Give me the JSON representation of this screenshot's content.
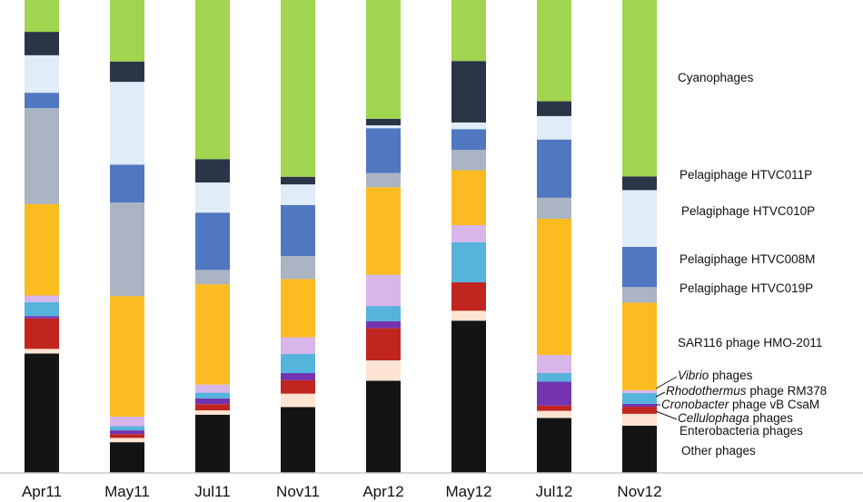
{
  "chart_data": {
    "type": "bar",
    "stacked": true,
    "normalized": true,
    "title": "",
    "xlabel": "",
    "ylabel": "",
    "ylim": [
      0,
      100
    ],
    "grid": false,
    "legend_placement": "right",
    "categories": [
      "Apr11",
      "May11",
      "Jul11",
      "Nov11",
      "Apr12",
      "May12",
      "Jul12",
      "Nov12"
    ],
    "series": [
      {
        "name": "Other phages",
        "color": "#141414",
        "values": [
          25.5,
          6.5,
          12.2,
          13.8,
          19.5,
          32.2,
          11.5,
          10.0
        ]
      },
      {
        "name": "Enterobacteria phages",
        "color": "#fde4d2",
        "values": [
          1.0,
          0.9,
          0.9,
          2.8,
          4.3,
          2.1,
          1.5,
          2.5
        ]
      },
      {
        "name": "Cellulophaga phages",
        "color": "#c0251f",
        "values": [
          6.5,
          0.8,
          1.3,
          2.8,
          6.8,
          6.0,
          1.1,
          1.5
        ]
      },
      {
        "name": "Cronobacter phage vB CsaM",
        "color": "#7434b0",
        "values": [
          0.5,
          0.8,
          1.2,
          1.5,
          1.5,
          0.0,
          5.0,
          0.6
        ]
      },
      {
        "name": "Rhodothermus phage RM378",
        "color": "#56b3dc",
        "values": [
          3.0,
          0.9,
          1.2,
          4.0,
          3.2,
          8.5,
          1.8,
          2.3
        ]
      },
      {
        "name": "Vibrio phages",
        "color": "#d8b5ea",
        "values": [
          1.4,
          2.0,
          1.7,
          3.5,
          6.6,
          3.6,
          3.8,
          0.6
        ]
      },
      {
        "name": "SAR116 phage HMO-2011",
        "color": "#fbbc21",
        "values": [
          19.5,
          25.5,
          21.0,
          12.2,
          18.5,
          11.6,
          28.5,
          18.5
        ]
      },
      {
        "name": "Pelagiphage HTVC019P",
        "color": "#aab4c2",
        "values": [
          20.5,
          19.8,
          3.0,
          4.8,
          3.0,
          4.3,
          4.4,
          3.3
        ]
      },
      {
        "name": "Pelagiphage HTVC008M",
        "color": "#4f78c0",
        "values": [
          3.3,
          8.0,
          12.0,
          10.7,
          9.5,
          4.4,
          12.2,
          8.5
        ]
      },
      {
        "name": "Pelagiphage HTVC010P",
        "color": "#e0ecf7",
        "values": [
          8.0,
          17.5,
          6.3,
          4.3,
          0.6,
          1.4,
          4.9,
          12.0
        ]
      },
      {
        "name": "Pelagiphage HTVC011P",
        "color": "#2a3547",
        "values": [
          5.0,
          4.3,
          4.9,
          1.6,
          1.4,
          13.0,
          3.1,
          2.9
        ]
      },
      {
        "name": "Cyanophages",
        "color": "#a1d54f",
        "values": [
          6.8,
          13.0,
          33.3,
          37.0,
          25.1,
          12.9,
          21.2,
          37.3
        ]
      }
    ],
    "legend": [
      {
        "text": "Cyanophages",
        "italic": "",
        "series": "Cyanophages"
      },
      {
        "text": "Pelagiphage HTVC011P",
        "italic": "",
        "series": "Pelagiphage HTVC011P"
      },
      {
        "text": "Pelagiphage HTVC010P",
        "italic": "",
        "series": "Pelagiphage HTVC010P"
      },
      {
        "text": "Pelagiphage HTVC008M",
        "italic": "",
        "series": "Pelagiphage HTVC008M"
      },
      {
        "text": "Pelagiphage HTVC019P",
        "italic": "",
        "series": "Pelagiphage HTVC019P"
      },
      {
        "text": "SAR116 phage HMO-2011",
        "italic": "",
        "series": "SAR116 phage HMO-2011"
      },
      {
        "text": " phages",
        "italic": "Vibrio",
        "series": "Vibrio phages"
      },
      {
        "text": " phage RM378",
        "italic": "Rhodothermus",
        "series": "Rhodothermus phage RM378"
      },
      {
        "text": " phage vB CsaM",
        "italic": "Cronobacter",
        "series": "Cronobacter phage vB CsaM"
      },
      {
        "text": " phages",
        "italic": "Cellulophaga",
        "series": "Cellulophaga phages"
      },
      {
        "text": "Enterobacteria phages",
        "italic": "",
        "series": "Enterobacteria phages"
      },
      {
        "text": "Other phages",
        "italic": "",
        "series": "Other phages"
      }
    ]
  }
}
